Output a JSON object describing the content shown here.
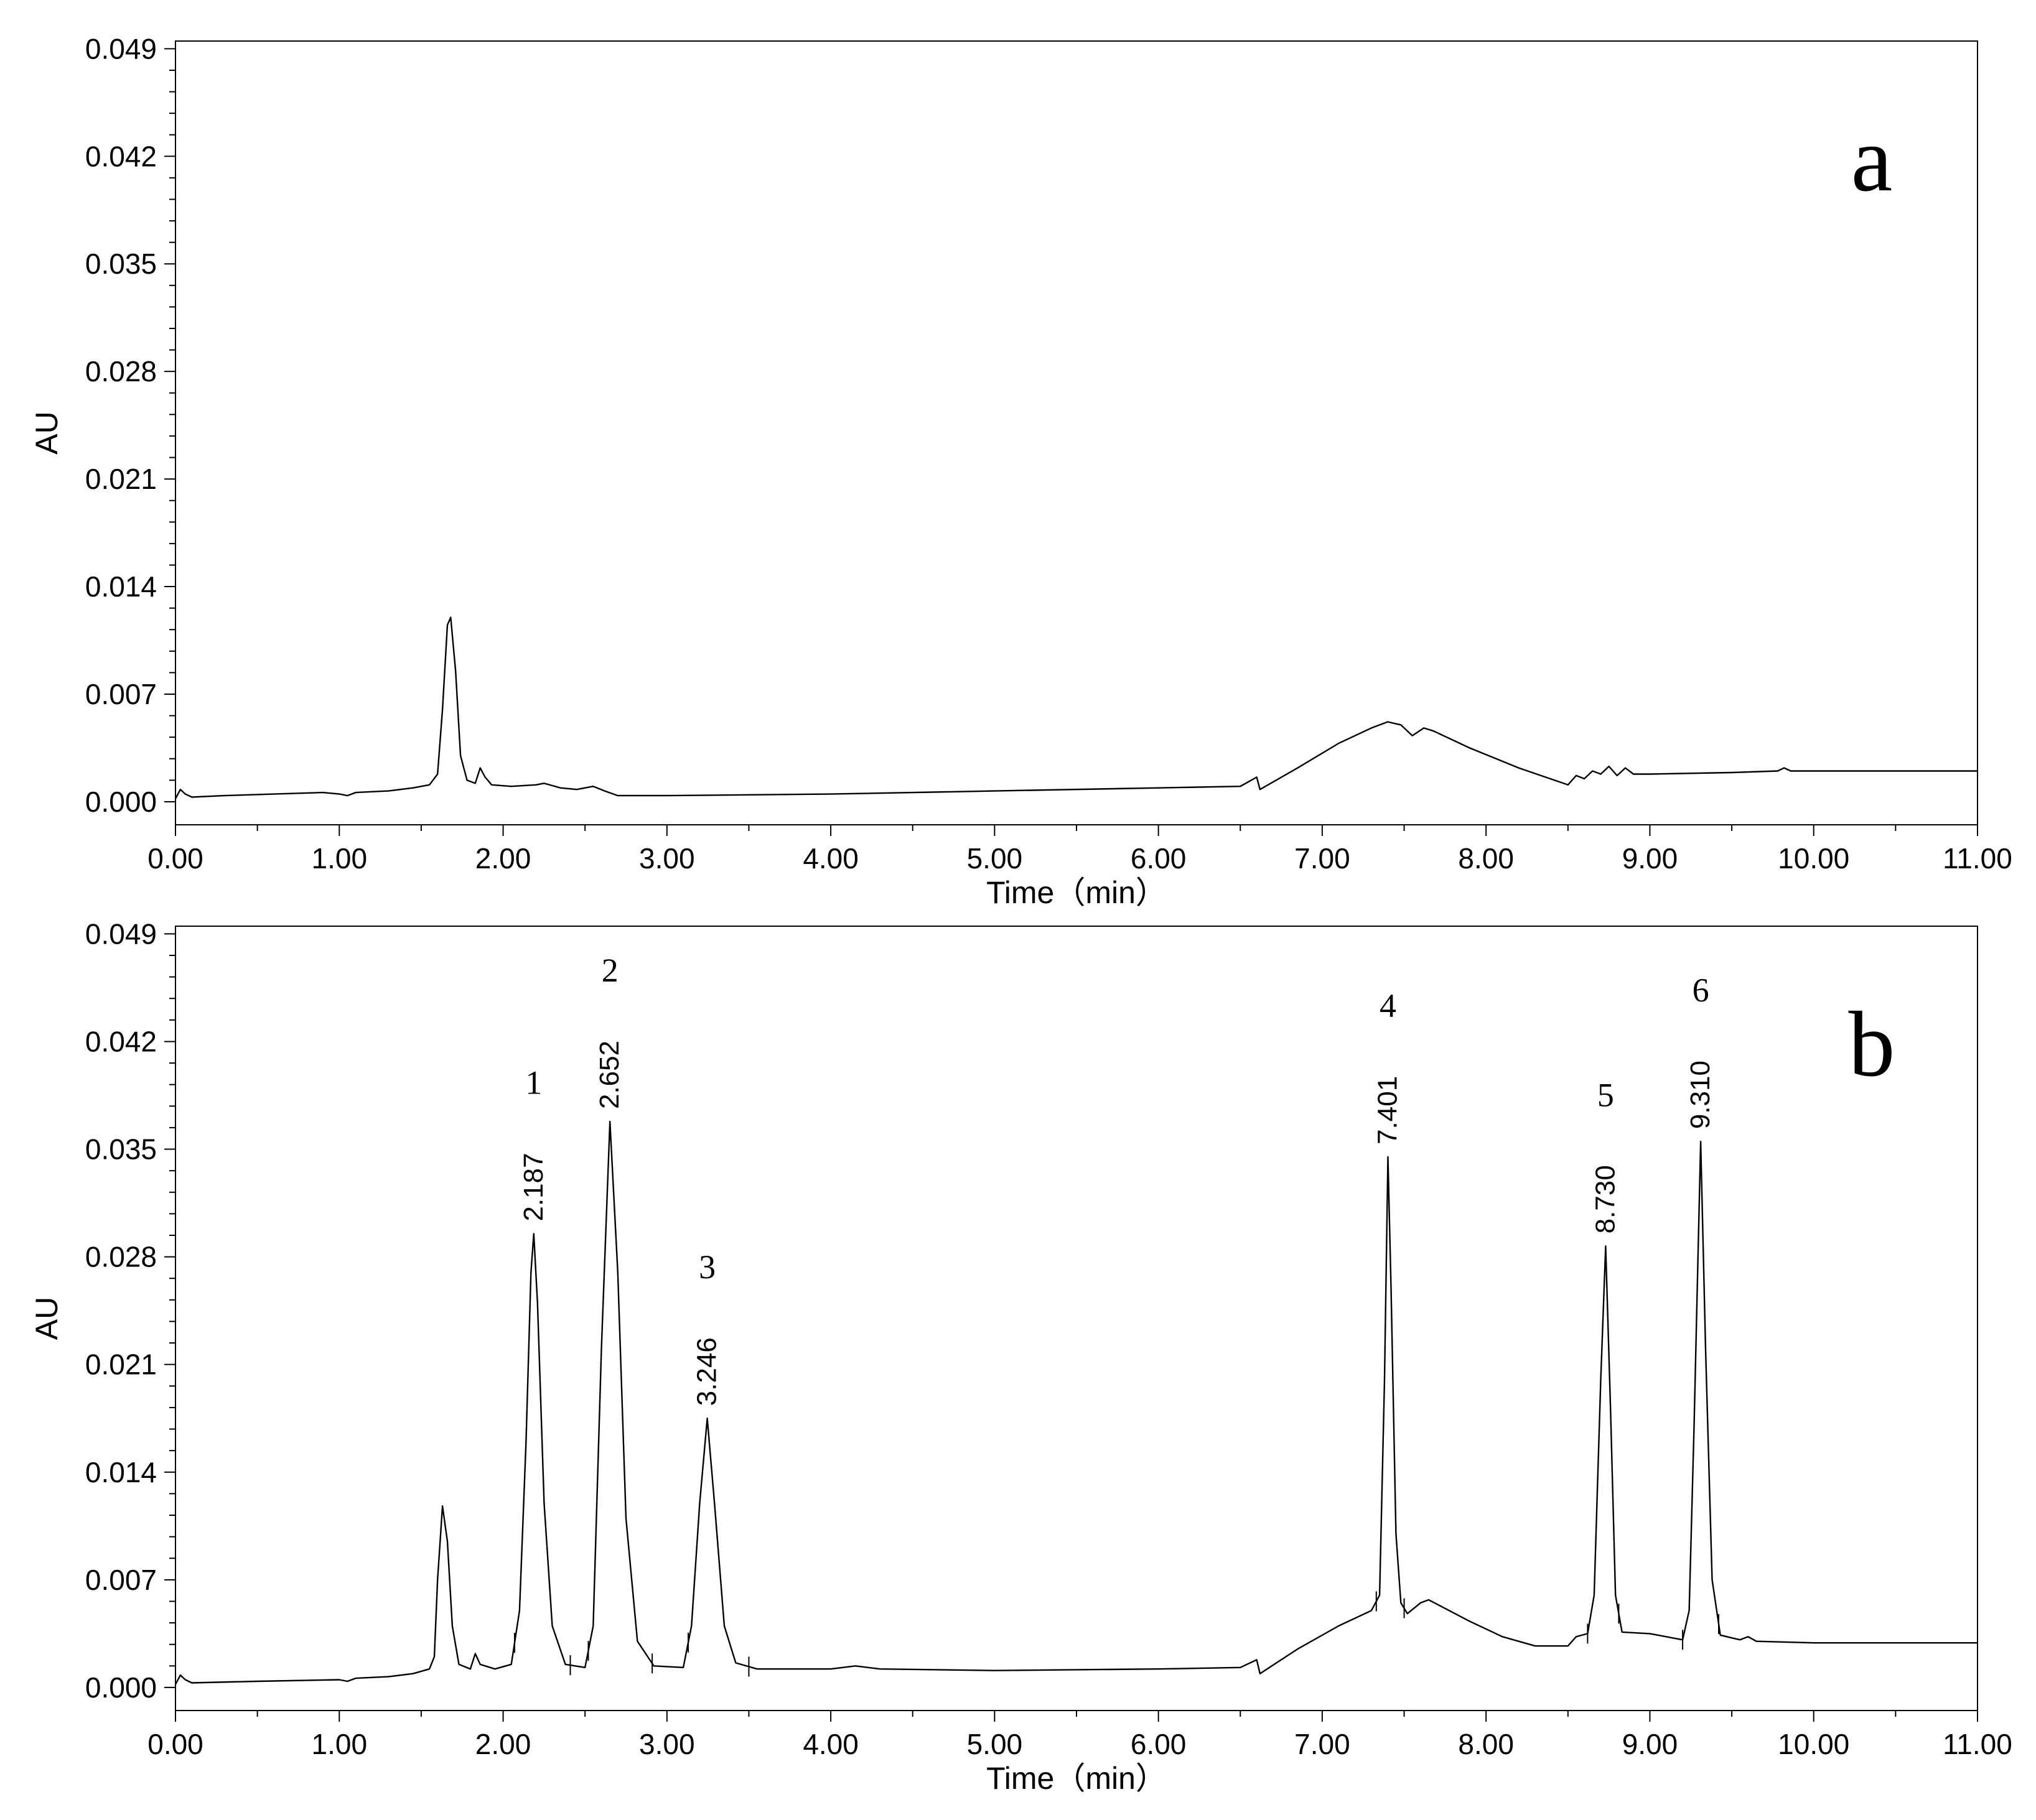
{
  "chart_data": [
    {
      "type": "line",
      "panel_label": "a",
      "xlabel": "Time（min）",
      "ylabel": "AU",
      "xlim": [
        0,
        11
      ],
      "ylim": [
        -0.0015,
        0.0495
      ],
      "x_ticks": [
        "0.00",
        "1.00",
        "2.00",
        "3.00",
        "4.00",
        "5.00",
        "6.00",
        "7.00",
        "8.00",
        "9.00",
        "10.00",
        "11.00"
      ],
      "y_ticks": [
        "0.000",
        "0.007",
        "0.014",
        "0.021",
        "0.028",
        "0.035",
        "0.042",
        "0.049"
      ],
      "grid": false,
      "series": [
        {
          "points": [
            [
              0.0,
              0.0002
            ],
            [
              0.03,
              0.0008
            ],
            [
              0.06,
              0.0005
            ],
            [
              0.1,
              0.0003
            ],
            [
              0.3,
              0.0004
            ],
            [
              0.6,
              0.0005
            ],
            [
              0.9,
              0.0006
            ],
            [
              1.0,
              0.0005
            ],
            [
              1.05,
              0.0004
            ],
            [
              1.1,
              0.0006
            ],
            [
              1.3,
              0.0007
            ],
            [
              1.45,
              0.0009
            ],
            [
              1.55,
              0.0011
            ],
            [
              1.6,
              0.0018
            ],
            [
              1.63,
              0.006
            ],
            [
              1.66,
              0.0115
            ],
            [
              1.68,
              0.012
            ],
            [
              1.71,
              0.0085
            ],
            [
              1.74,
              0.003
            ],
            [
              1.78,
              0.0014
            ],
            [
              1.83,
              0.0012
            ],
            [
              1.86,
              0.0022
            ],
            [
              1.89,
              0.0016
            ],
            [
              1.93,
              0.0011
            ],
            [
              2.05,
              0.001
            ],
            [
              2.2,
              0.0011
            ],
            [
              2.25,
              0.0012
            ],
            [
              2.35,
              0.0009
            ],
            [
              2.45,
              0.0008
            ],
            [
              2.55,
              0.001
            ],
            [
              2.62,
              0.0007
            ],
            [
              2.7,
              0.0004
            ],
            [
              3.0,
              0.0004
            ],
            [
              4.0,
              0.0005
            ],
            [
              5.0,
              0.0007
            ],
            [
              6.0,
              0.0009
            ],
            [
              6.5,
              0.001
            ],
            [
              6.6,
              0.0016
            ],
            [
              6.62,
              0.0008
            ],
            [
              6.85,
              0.0022
            ],
            [
              7.1,
              0.0038
            ],
            [
              7.3,
              0.0048
            ],
            [
              7.4,
              0.0052
            ],
            [
              7.48,
              0.005
            ],
            [
              7.55,
              0.0043
            ],
            [
              7.62,
              0.0048
            ],
            [
              7.68,
              0.0046
            ],
            [
              7.9,
              0.0035
            ],
            [
              8.2,
              0.0022
            ],
            [
              8.5,
              0.0011
            ],
            [
              8.55,
              0.0017
            ],
            [
              8.6,
              0.0015
            ],
            [
              8.65,
              0.002
            ],
            [
              8.7,
              0.0018
            ],
            [
              8.75,
              0.0023
            ],
            [
              8.8,
              0.0017
            ],
            [
              8.85,
              0.0022
            ],
            [
              8.9,
              0.0018
            ],
            [
              9.0,
              0.0018
            ],
            [
              9.5,
              0.0019
            ],
            [
              9.78,
              0.002
            ],
            [
              9.82,
              0.0022
            ],
            [
              9.86,
              0.002
            ],
            [
              10.5,
              0.002
            ],
            [
              11.0,
              0.002
            ]
          ]
        }
      ]
    },
    {
      "type": "line",
      "panel_label": "b",
      "xlabel": "Time（min）",
      "ylabel": "AU",
      "xlim": [
        0,
        11
      ],
      "ylim": [
        -0.0015,
        0.0495
      ],
      "x_ticks": [
        "0.00",
        "1.00",
        "2.00",
        "3.00",
        "4.00",
        "5.00",
        "6.00",
        "7.00",
        "8.00",
        "9.00",
        "10.00",
        "11.00"
      ],
      "y_ticks": [
        "0.000",
        "0.007",
        "0.014",
        "0.021",
        "0.028",
        "0.035",
        "0.042",
        "0.049"
      ],
      "grid": false,
      "peaks": [
        {
          "number": "1",
          "rt": "2.187",
          "x": 2.187,
          "y": 0.0295,
          "start": 2.07,
          "end": 2.41
        },
        {
          "number": "2",
          "rt": "2.652",
          "x": 2.652,
          "y": 0.0368,
          "start": 2.52,
          "end": 2.91
        },
        {
          "number": "3",
          "rt": "3.246",
          "x": 3.246,
          "y": 0.0175,
          "start": 3.13,
          "end": 3.5
        },
        {
          "number": "4",
          "rt": "7.401",
          "x": 7.401,
          "y": 0.0345,
          "start": 7.33,
          "end": 7.5
        },
        {
          "number": "5",
          "rt": "8.730",
          "x": 8.73,
          "y": 0.0287,
          "start": 8.62,
          "end": 8.81
        },
        {
          "number": "6",
          "rt": "9.310",
          "x": 9.31,
          "y": 0.0355,
          "start": 9.2,
          "end": 9.42
        }
      ],
      "series": [
        {
          "points": [
            [
              0.0,
              0.0002
            ],
            [
              0.03,
              0.0008
            ],
            [
              0.06,
              0.0005
            ],
            [
              0.1,
              0.0003
            ],
            [
              0.5,
              0.0004
            ],
            [
              1.0,
              0.0005
            ],
            [
              1.05,
              0.0004
            ],
            [
              1.1,
              0.0006
            ],
            [
              1.3,
              0.0007
            ],
            [
              1.45,
              0.0009
            ],
            [
              1.55,
              0.0012
            ],
            [
              1.58,
              0.002
            ],
            [
              1.6,
              0.007
            ],
            [
              1.63,
              0.0118
            ],
            [
              1.66,
              0.0095
            ],
            [
              1.69,
              0.004
            ],
            [
              1.73,
              0.0015
            ],
            [
              1.8,
              0.0012
            ],
            [
              1.83,
              0.0022
            ],
            [
              1.86,
              0.0015
            ],
            [
              1.95,
              0.0012
            ],
            [
              2.05,
              0.0015
            ],
            [
              2.1,
              0.005
            ],
            [
              2.14,
              0.016
            ],
            [
              2.17,
              0.027
            ],
            [
              2.187,
              0.0295
            ],
            [
              2.21,
              0.025
            ],
            [
              2.25,
              0.012
            ],
            [
              2.3,
              0.004
            ],
            [
              2.38,
              0.0015
            ],
            [
              2.5,
              0.0013
            ],
            [
              2.55,
              0.004
            ],
            [
              2.6,
              0.022
            ],
            [
              2.652,
              0.0368
            ],
            [
              2.7,
              0.027
            ],
            [
              2.75,
              0.011
            ],
            [
              2.82,
              0.003
            ],
            [
              2.92,
              0.0014
            ],
            [
              3.1,
              0.0013
            ],
            [
              3.15,
              0.004
            ],
            [
              3.2,
              0.012
            ],
            [
              3.246,
              0.0175
            ],
            [
              3.29,
              0.012
            ],
            [
              3.35,
              0.004
            ],
            [
              3.42,
              0.0016
            ],
            [
              3.55,
              0.0012
            ],
            [
              4.0,
              0.0012
            ],
            [
              4.15,
              0.0014
            ],
            [
              4.3,
              0.0012
            ],
            [
              5.0,
              0.0011
            ],
            [
              6.0,
              0.0012
            ],
            [
              6.5,
              0.0013
            ],
            [
              6.6,
              0.0018
            ],
            [
              6.62,
              0.0009
            ],
            [
              6.85,
              0.0025
            ],
            [
              7.1,
              0.004
            ],
            [
              7.3,
              0.005
            ],
            [
              7.35,
              0.006
            ],
            [
              7.38,
              0.02
            ],
            [
              7.401,
              0.0345
            ],
            [
              7.42,
              0.026
            ],
            [
              7.45,
              0.01
            ],
            [
              7.48,
              0.0055
            ],
            [
              7.52,
              0.0048
            ],
            [
              7.6,
              0.0055
            ],
            [
              7.65,
              0.0057
            ],
            [
              7.9,
              0.0043
            ],
            [
              8.1,
              0.0033
            ],
            [
              8.3,
              0.0027
            ],
            [
              8.5,
              0.0027
            ],
            [
              8.55,
              0.0033
            ],
            [
              8.62,
              0.0035
            ],
            [
              8.66,
              0.006
            ],
            [
              8.7,
              0.02
            ],
            [
              8.73,
              0.0287
            ],
            [
              8.76,
              0.018
            ],
            [
              8.79,
              0.006
            ],
            [
              8.83,
              0.0036
            ],
            [
              9.0,
              0.0035
            ],
            [
              9.2,
              0.0031
            ],
            [
              9.24,
              0.005
            ],
            [
              9.27,
              0.017
            ],
            [
              9.31,
              0.0355
            ],
            [
              9.34,
              0.022
            ],
            [
              9.38,
              0.007
            ],
            [
              9.43,
              0.0034
            ],
            [
              9.55,
              0.0031
            ],
            [
              9.6,
              0.0033
            ],
            [
              9.65,
              0.003
            ],
            [
              10.0,
              0.0029
            ],
            [
              11.0,
              0.0029
            ]
          ]
        }
      ]
    }
  ]
}
